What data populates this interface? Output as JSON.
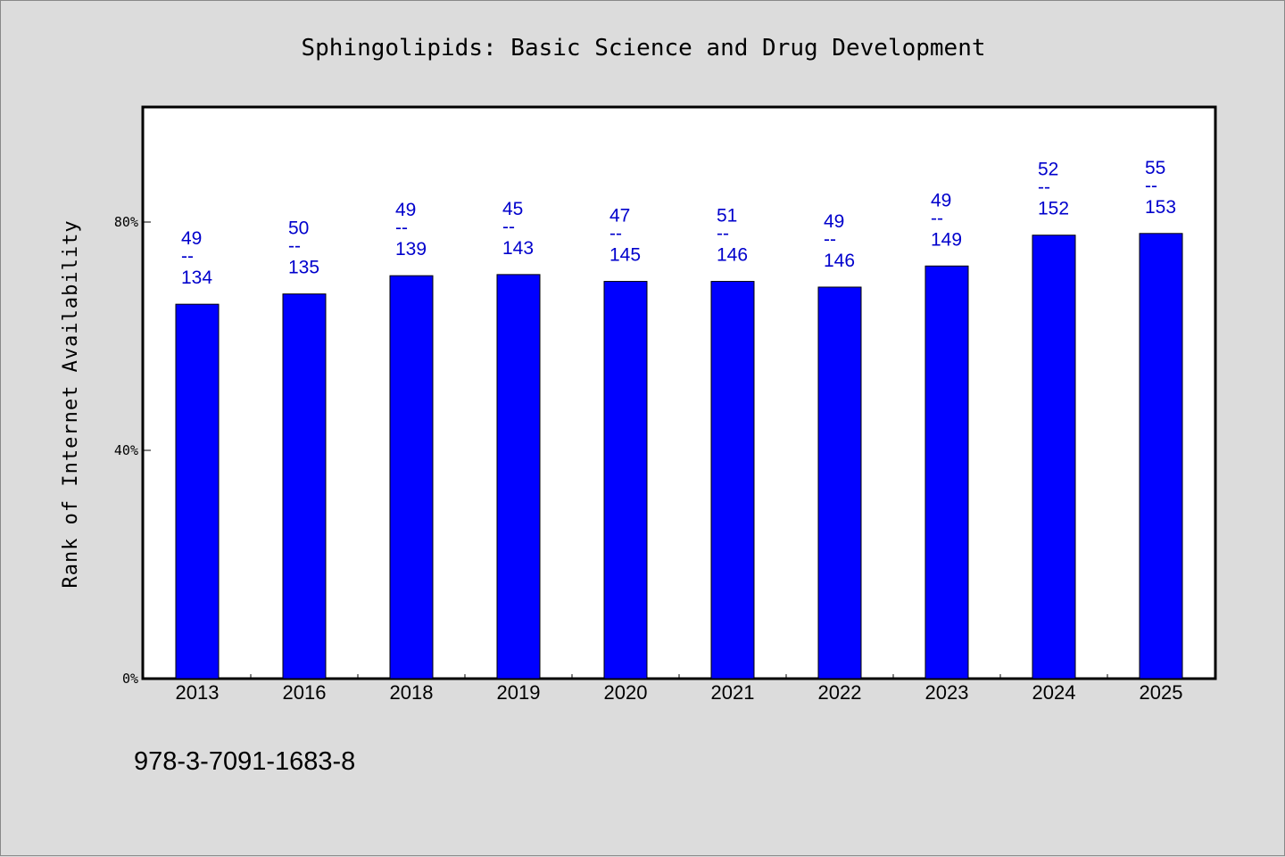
{
  "chart_data": {
    "type": "bar",
    "title": "Sphingolipids: Basic Science and Drug Development",
    "ylabel": "Rank of Internet Availability",
    "xlabel": "",
    "ylim": [
      0,
      100
    ],
    "y_ticks": [
      {
        "value": 0,
        "label": "0%"
      },
      {
        "value": 40,
        "label": "40%"
      },
      {
        "value": 80,
        "label": "80%"
      }
    ],
    "categories": [
      "2013",
      "2016",
      "2018",
      "2019",
      "2020",
      "2021",
      "2022",
      "2023",
      "2024",
      "2025"
    ],
    "values": [
      65.6,
      67.4,
      70.6,
      70.8,
      69.6,
      69.6,
      68.6,
      72.3,
      77.7,
      78.0
    ],
    "bar_labels": [
      {
        "top": "49",
        "sep": "--",
        "bottom": "134"
      },
      {
        "top": "50",
        "sep": "--",
        "bottom": "135"
      },
      {
        "top": "49",
        "sep": "--",
        "bottom": "139"
      },
      {
        "top": "45",
        "sep": "--",
        "bottom": "143"
      },
      {
        "top": "47",
        "sep": "--",
        "bottom": "145"
      },
      {
        "top": "51",
        "sep": "--",
        "bottom": "146"
      },
      {
        "top": "49",
        "sep": "--",
        "bottom": "146"
      },
      {
        "top": "49",
        "sep": "--",
        "bottom": "149"
      },
      {
        "top": "52",
        "sep": "--",
        "bottom": "152"
      },
      {
        "top": "55",
        "sep": "--",
        "bottom": "153"
      }
    ],
    "bar_color": "#0000ff",
    "label_color": "#0000cc",
    "plot_background": "#ffffff",
    "page_background": "#dcdcdc",
    "grid": false,
    "legend": "none"
  },
  "footer": {
    "isbn": "978-3-7091-1683-8"
  }
}
